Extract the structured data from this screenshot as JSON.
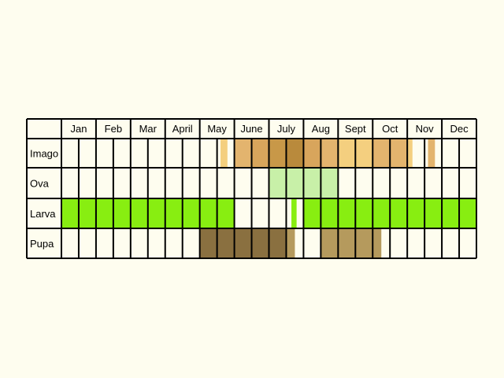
{
  "months": [
    "Jan",
    "Feb",
    "Mar",
    "April",
    "May",
    "June",
    "July",
    "Aug",
    "Sept",
    "Oct",
    "Nov",
    "Dec"
  ],
  "stages": [
    "Imago",
    "Ova",
    "Larva",
    "Pupa"
  ],
  "colors": {
    "background": "#fefdef",
    "grid": "#000000",
    "imago_light": "#f4cf7f",
    "imago_medium": "#e3b46e",
    "imago_dark": "#d8a55c",
    "imago_darkest": "#b98a3c",
    "ova": "#c8f0a8",
    "larva": "#88ee11",
    "pupa_dark": "#8a7040",
    "pupa_light": "#b59a5d"
  },
  "chart_data": {
    "type": "table",
    "columns": [
      "Jan",
      "Feb",
      "Mar",
      "April",
      "May",
      "June",
      "July",
      "Aug",
      "Sept",
      "Oct",
      "Nov",
      "Dec"
    ],
    "rows": [
      "Imago",
      "Ova",
      "Larva",
      "Pupa"
    ],
    "subdivisions_per_month": 2,
    "time_unit": "month",
    "bands": [
      {
        "stage": "Imago",
        "start": 4.6,
        "end": 4.8,
        "color": "#f4cf7f"
      },
      {
        "stage": "Imago",
        "start": 5.0,
        "end": 5.5,
        "color": "#e3b46e"
      },
      {
        "stage": "Imago",
        "start": 5.5,
        "end": 6.0,
        "color": "#d8a55c"
      },
      {
        "stage": "Imago",
        "start": 6.0,
        "end": 6.5,
        "color": "#c89848"
      },
      {
        "stage": "Imago",
        "start": 6.5,
        "end": 7.0,
        "color": "#b98a3c"
      },
      {
        "stage": "Imago",
        "start": 7.0,
        "end": 7.5,
        "color": "#d8a55c"
      },
      {
        "stage": "Imago",
        "start": 7.5,
        "end": 8.0,
        "color": "#e3b46e"
      },
      {
        "stage": "Imago",
        "start": 8.0,
        "end": 9.0,
        "color": "#f4cf7f"
      },
      {
        "stage": "Imago",
        "start": 9.0,
        "end": 10.0,
        "color": "#e3b46e"
      },
      {
        "stage": "Imago",
        "start": 10.0,
        "end": 10.15,
        "color": "#f4cf7f"
      },
      {
        "stage": "Imago",
        "start": 10.6,
        "end": 10.8,
        "color": "#e3b46e"
      },
      {
        "stage": "Ova",
        "start": 6.0,
        "end": 8.0,
        "color": "#c8f0a8"
      },
      {
        "stage": "Larva",
        "start": 0.0,
        "end": 5.0,
        "color": "#88ee11"
      },
      {
        "stage": "Larva",
        "start": 6.65,
        "end": 6.8,
        "color": "#88ee11"
      },
      {
        "stage": "Larva",
        "start": 7.0,
        "end": 12.0,
        "color": "#88ee11"
      },
      {
        "stage": "Pupa",
        "start": 4.0,
        "end": 6.5,
        "color": "#8a7040"
      },
      {
        "stage": "Pupa",
        "start": 6.5,
        "end": 6.75,
        "color": "#b59a5d"
      },
      {
        "stage": "Pupa",
        "start": 7.5,
        "end": 9.25,
        "color": "#b59a5d"
      }
    ]
  }
}
